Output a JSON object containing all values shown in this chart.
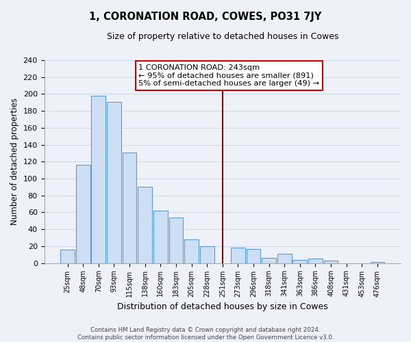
{
  "title": "1, CORONATION ROAD, COWES, PO31 7JY",
  "subtitle": "Size of property relative to detached houses in Cowes",
  "xlabel": "Distribution of detached houses by size in Cowes",
  "ylabel": "Number of detached properties",
  "bar_labels": [
    "25sqm",
    "48sqm",
    "70sqm",
    "93sqm",
    "115sqm",
    "138sqm",
    "160sqm",
    "183sqm",
    "205sqm",
    "228sqm",
    "251sqm",
    "273sqm",
    "296sqm",
    "318sqm",
    "341sqm",
    "363sqm",
    "386sqm",
    "408sqm",
    "431sqm",
    "453sqm",
    "476sqm"
  ],
  "bar_values": [
    16,
    116,
    198,
    191,
    131,
    90,
    62,
    54,
    28,
    20,
    0,
    18,
    17,
    6,
    11,
    4,
    5,
    3,
    0,
    0,
    1
  ],
  "bar_color": "#ccdff5",
  "bar_edge_color": "#5b9bd5",
  "vline_x": 10.0,
  "vline_color": "#8b0000",
  "ylim": [
    0,
    240
  ],
  "yticks": [
    0,
    20,
    40,
    60,
    80,
    100,
    120,
    140,
    160,
    180,
    200,
    220,
    240
  ],
  "annotation_title": "1 CORONATION ROAD: 243sqm",
  "annotation_line1": "← 95% of detached houses are smaller (891)",
  "annotation_line2": "5% of semi-detached houses are larger (49) →",
  "footer_line1": "Contains HM Land Registry data © Crown copyright and database right 2024.",
  "footer_line2": "Contains public sector information licensed under the Open Government Licence v3.0.",
  "bg_color": "#eef2f8",
  "grid_color": "#d0d8e8",
  "plot_bg_color": "#eef2f8"
}
